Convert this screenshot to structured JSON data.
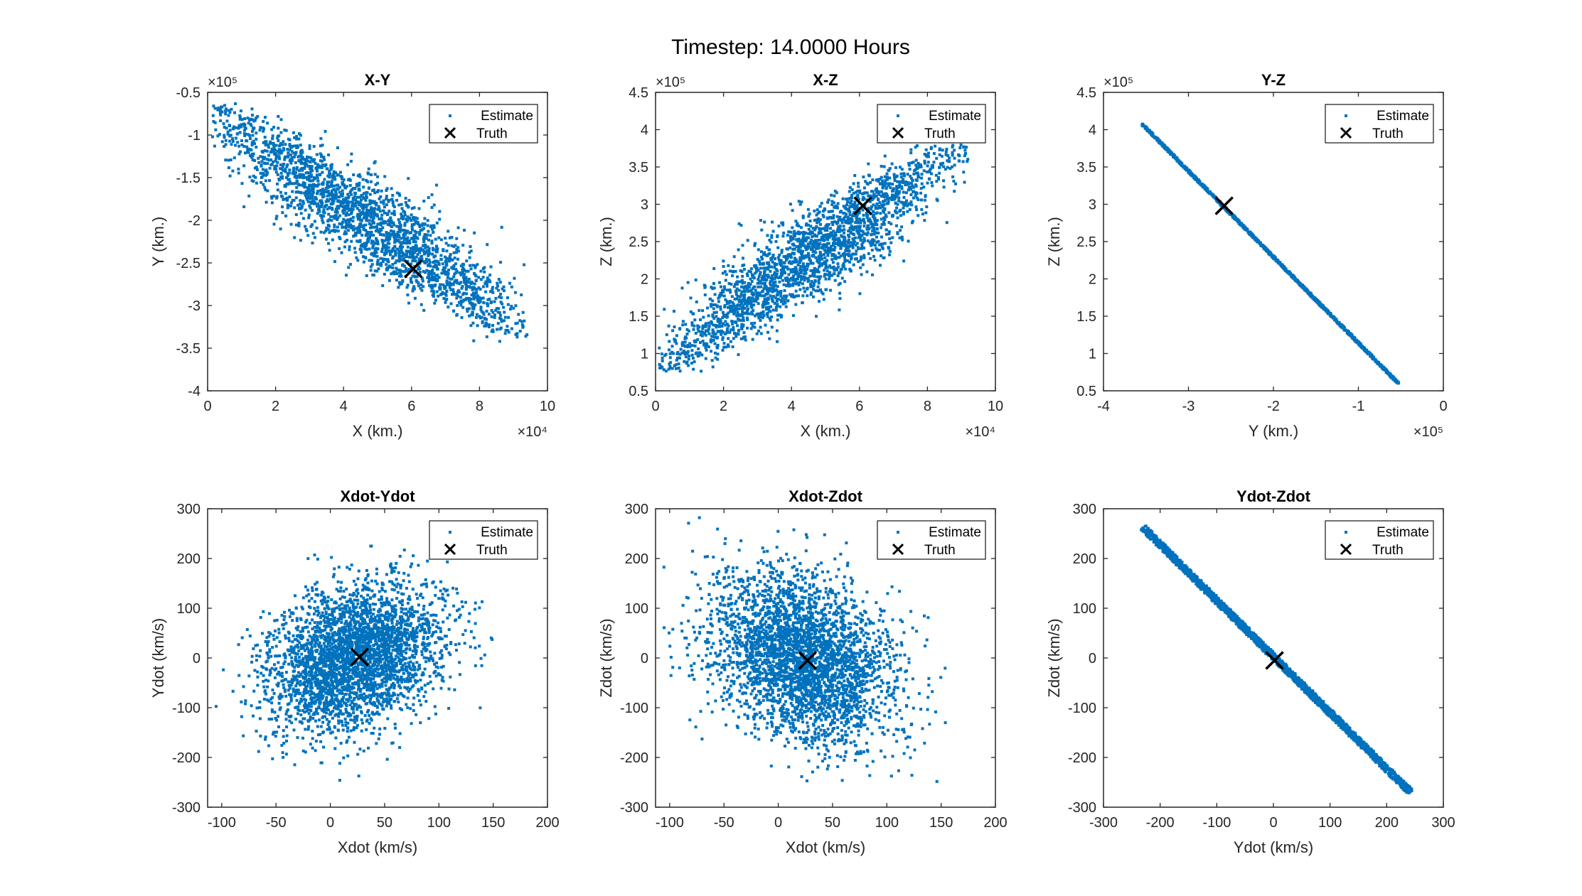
{
  "figure_title": "Timestep: 14.0000 Hours",
  "colors": {
    "estimate": "#0072BD",
    "truth": "#000000",
    "axis": "#262626"
  },
  "chart_data": [
    {
      "type": "scatter",
      "title": "X-Y",
      "xlabel": "X (km.)",
      "ylabel": "Y (km.)",
      "xlim": [
        0,
        100000
      ],
      "ylim": [
        -400000,
        -50000
      ],
      "xticks": [
        0,
        20000,
        40000,
        60000,
        80000,
        100000
      ],
      "xtick_labels": [
        "0",
        "2",
        "4",
        "6",
        "8",
        "10"
      ],
      "yticks": [
        -400000,
        -350000,
        -300000,
        -250000,
        -200000,
        -150000,
        -100000,
        -50000
      ],
      "ytick_labels": [
        "-4",
        "-3.5",
        "-3",
        "-2.5",
        "-2",
        "-1.5",
        "-1",
        "-0.5"
      ],
      "x_exponent": "×10⁴",
      "y_exponent": "×10⁵",
      "legend": [
        "Estimate",
        "Truth"
      ],
      "legend_position": "top-right",
      "truth": [
        60500,
        -257000
      ],
      "estimate_cloud": {
        "shape": "ellipse",
        "center": [
          48000,
          -200000
        ],
        "axis_start": [
          2000,
          -65000
        ],
        "axis_end": [
          93000,
          -340000
        ],
        "half_width": 9000,
        "clip_x": [
          1000,
          94000
        ],
        "clip_y": [
          -350000,
          -50000
        ],
        "points": 2200
      }
    },
    {
      "type": "scatter",
      "title": "X-Z",
      "xlabel": "X (km.)",
      "ylabel": "Z (km.)",
      "xlim": [
        0,
        100000
      ],
      "ylim": [
        50000,
        450000
      ],
      "xticks": [
        0,
        20000,
        40000,
        60000,
        80000,
        100000
      ],
      "xtick_labels": [
        "0",
        "2",
        "4",
        "6",
        "8",
        "10"
      ],
      "yticks": [
        50000,
        100000,
        150000,
        200000,
        250000,
        300000,
        350000,
        400000,
        450000
      ],
      "ytick_labels": [
        "0.5",
        "1",
        "1.5",
        "2",
        "2.5",
        "3",
        "3.5",
        "4",
        "4.5"
      ],
      "x_exponent": "×10⁴",
      "y_exponent": "×10⁵",
      "legend": [
        "Estimate",
        "Truth"
      ],
      "legend_position": "top-right",
      "truth": [
        61000,
        298000
      ],
      "estimate_cloud": {
        "shape": "ellipse",
        "center": [
          45000,
          225000
        ],
        "axis_start": [
          3000,
          75000
        ],
        "axis_end": [
          88000,
          385000
        ],
        "half_width": 8500,
        "clip_x": [
          1000,
          92000
        ],
        "clip_y": [
          58000,
          380000
        ],
        "points": 2200
      }
    },
    {
      "type": "scatter",
      "title": "Y-Z",
      "xlabel": "Y (km.)",
      "ylabel": "Z (km.)",
      "xlim": [
        -400000,
        0
      ],
      "ylim": [
        50000,
        450000
      ],
      "xticks": [
        -400000,
        -300000,
        -200000,
        -100000,
        0
      ],
      "xtick_labels": [
        "-4",
        "-3",
        "-2",
        "-1",
        "0"
      ],
      "yticks": [
        50000,
        100000,
        150000,
        200000,
        250000,
        300000,
        350000,
        400000,
        450000
      ],
      "ytick_labels": [
        "0.5",
        "1",
        "1.5",
        "2",
        "2.5",
        "3",
        "3.5",
        "4",
        "4.5"
      ],
      "x_exponent": "×10⁵",
      "y_exponent": "×10⁵",
      "legend": [
        "Estimate",
        "Truth"
      ],
      "legend_position": "top-right",
      "truth": [
        -258000,
        298000
      ],
      "estimate_cloud": {
        "shape": "line",
        "axis_start": [
          -355000,
          408000
        ],
        "axis_end": [
          -53000,
          60000
        ],
        "half_width": 1200,
        "clip_x": [
          -356000,
          -52000
        ],
        "clip_y": [
          59000,
          410000
        ],
        "points": 1300
      }
    },
    {
      "type": "scatter",
      "title": "Xdot-Ydot",
      "xlabel": "Xdot (km/s)",
      "ylabel": "Ydot (km/s)",
      "xlim": [
        -113,
        200
      ],
      "ylim": [
        -300,
        300
      ],
      "xticks": [
        -100,
        -50,
        0,
        50,
        100,
        150,
        200
      ],
      "xtick_labels": [
        "-100",
        "-50",
        "0",
        "50",
        "100",
        "150",
        "200"
      ],
      "yticks": [
        -300,
        -200,
        -100,
        0,
        100,
        200,
        300
      ],
      "ytick_labels": [
        "-300",
        "-200",
        "-100",
        "0",
        "100",
        "200",
        "300"
      ],
      "x_exponent": "",
      "y_exponent": "",
      "legend": [
        "Estimate",
        "Truth"
      ],
      "legend_position": "top-right",
      "truth": [
        27,
        2
      ],
      "estimate_cloud": {
        "shape": "blob",
        "center": [
          22,
          0
        ],
        "sd": [
          40,
          75
        ],
        "corr": 0.3,
        "clip_x": [
          -113,
          156
        ],
        "clip_y": [
          -250,
          228
        ],
        "points": 3200
      }
    },
    {
      "type": "scatter",
      "title": "Xdot-Zdot",
      "xlabel": "Xdot (km/s)",
      "ylabel": "Zdot (km/s)",
      "xlim": [
        -113,
        200
      ],
      "ylim": [
        -300,
        300
      ],
      "xticks": [
        -100,
        -50,
        0,
        50,
        100,
        150,
        200
      ],
      "xtick_labels": [
        "-100",
        "-50",
        "0",
        "50",
        "100",
        "150",
        "200"
      ],
      "yticks": [
        -300,
        -200,
        -100,
        0,
        100,
        200,
        300
      ],
      "ytick_labels": [
        "-300",
        "-200",
        "-100",
        "0",
        "100",
        "200",
        "300"
      ],
      "x_exponent": "",
      "y_exponent": "",
      "legend": [
        "Estimate",
        "Truth"
      ],
      "legend_position": "top-right",
      "truth": [
        27,
        -5
      ],
      "estimate_cloud": {
        "shape": "blob",
        "center": [
          22,
          0
        ],
        "sd": [
          42,
          85
        ],
        "corr": -0.3,
        "clip_x": [
          -113,
          156
        ],
        "clip_y": [
          -265,
          282
        ],
        "points": 3200
      }
    },
    {
      "type": "scatter",
      "title": "Ydot-Zdot",
      "xlabel": "Ydot (km/s)",
      "ylabel": "Zdot (km/s)",
      "xlim": [
        -300,
        300
      ],
      "ylim": [
        -300,
        300
      ],
      "xticks": [
        -300,
        -200,
        -100,
        0,
        100,
        200,
        300
      ],
      "xtick_labels": [
        "-300",
        "-200",
        "-100",
        "0",
        "100",
        "200",
        "300"
      ],
      "yticks": [
        -300,
        -200,
        -100,
        0,
        100,
        200,
        300
      ],
      "ytick_labels": [
        "-300",
        "-200",
        "-100",
        "0",
        "100",
        "200",
        "300"
      ],
      "x_exponent": "",
      "y_exponent": "",
      "legend": [
        "Estimate",
        "Truth"
      ],
      "legend_position": "top-right",
      "truth": [
        2,
        -5
      ],
      "estimate_cloud": {
        "shape": "line",
        "axis_start": [
          -230,
          262
        ],
        "axis_end": [
          242,
          -270
        ],
        "half_width": 6,
        "clip_x": [
          -255,
          245
        ],
        "clip_y": [
          -272,
          282
        ],
        "points": 1800
      }
    }
  ]
}
